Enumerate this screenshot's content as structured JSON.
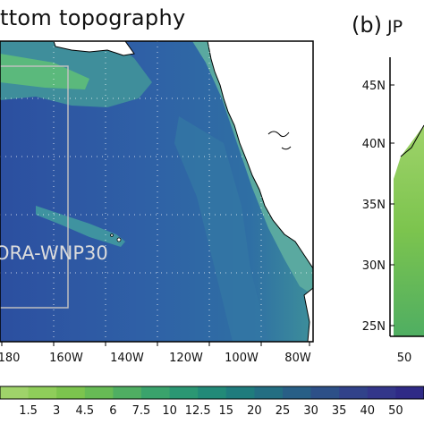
{
  "panel_a": {
    "title": "ttom topography",
    "box_label": "ORA-WNP30",
    "x_ticks": [
      "180",
      "160W",
      "140W",
      "120W",
      "100W",
      "80W"
    ]
  },
  "panel_b": {
    "title": "(b)",
    "subtitle": "JP",
    "y_ticks": [
      "45N",
      "40N",
      "35N",
      "30N",
      "25N"
    ],
    "x_ticks": [
      "50"
    ]
  },
  "colorbar": {
    "labels": [
      "1.5",
      "3",
      "4.5",
      "6",
      "7.5",
      "10",
      "12.5",
      "15",
      "20",
      "25",
      "30",
      "35",
      "40",
      "50"
    ],
    "colors": [
      "#9fd36a",
      "#8fcd5a",
      "#7cc44e",
      "#67bb55",
      "#4fae62",
      "#3aa36c",
      "#2b9773",
      "#228a78",
      "#1f7c7d",
      "#236e82",
      "#285f86",
      "#2d5088",
      "#31428a",
      "#33368a",
      "#2f2a86"
    ]
  },
  "colors": {
    "deep_ocean": "#2f56a3",
    "mid_ocean": "#2f7a9b",
    "shelf": "#56b98a",
    "land": "#ffffff",
    "coast": "#000000",
    "box": "#bfbfbf"
  }
}
